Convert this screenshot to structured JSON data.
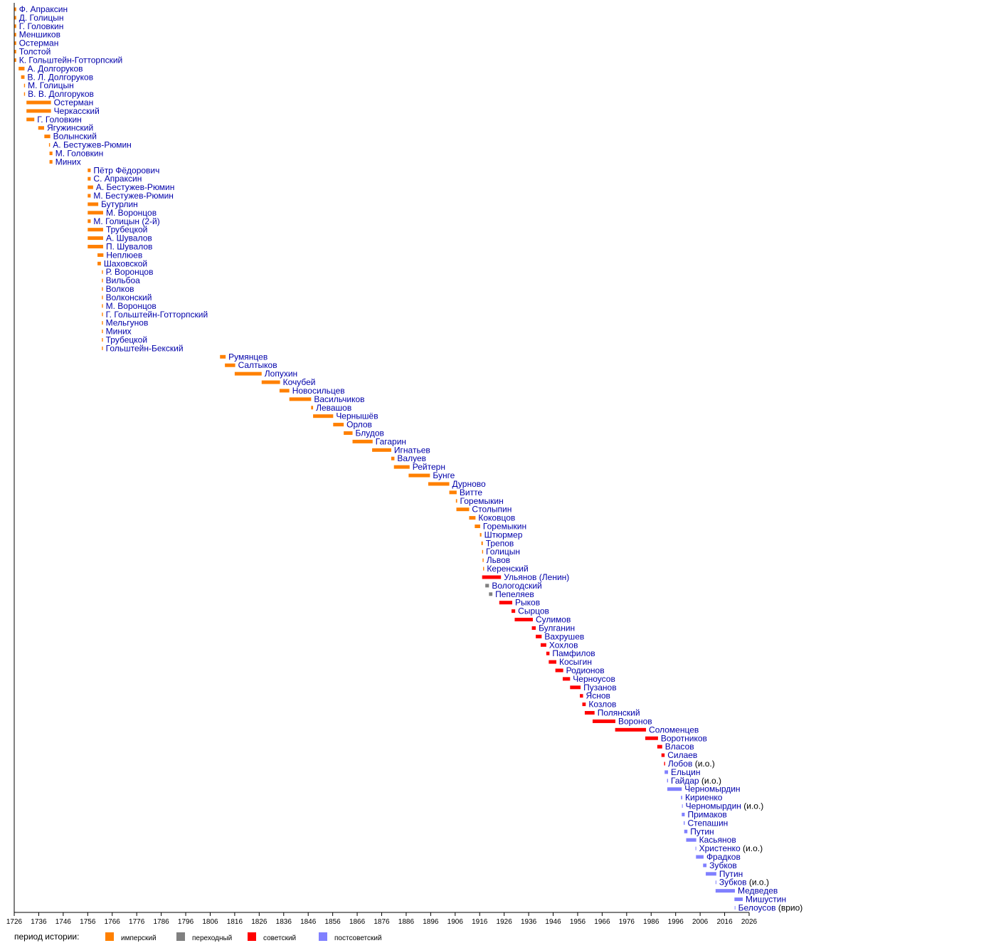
{
  "chart_data": {
    "type": "bar",
    "orientation": "horizontal-timeline",
    "x_axis": {
      "min": 1726,
      "max": 2026,
      "ticks": [
        1726,
        1736,
        1746,
        1756,
        1766,
        1776,
        1786,
        1796,
        1806,
        1816,
        1826,
        1836,
        1846,
        1856,
        1866,
        1876,
        1886,
        1896,
        1906,
        1916,
        1926,
        1936,
        1946,
        1956,
        1966,
        1976,
        1986,
        1996,
        2006,
        2016,
        2026
      ]
    },
    "colors": {
      "imperial": "#ff8000",
      "transitional": "#808080",
      "soviet": "#ff0000",
      "postsoviet": "#8080ff",
      "label": "#0000aa",
      "axis": "#000000"
    },
    "legend": {
      "title": "период истории:",
      "placement": "bottom-left",
      "items": [
        {
          "key": "imperial",
          "label": "имперский"
        },
        {
          "key": "transitional",
          "label": "переходный"
        },
        {
          "key": "soviet",
          "label": "советский"
        },
        {
          "key": "postsoviet",
          "label": "постсоветский"
        }
      ]
    },
    "rows": [
      {
        "name": "Ф. Апраксин",
        "start": 1726.1,
        "end": 1726.8,
        "period": "imperial"
      },
      {
        "name": "Д. Голицын",
        "start": 1726.1,
        "end": 1726.8,
        "period": "imperial"
      },
      {
        "name": "Г. Головкин",
        "start": 1726.1,
        "end": 1726.8,
        "period": "imperial"
      },
      {
        "name": "Меншиков",
        "start": 1726.1,
        "end": 1726.8,
        "period": "imperial"
      },
      {
        "name": "Остерман",
        "start": 1726.1,
        "end": 1726.8,
        "period": "imperial"
      },
      {
        "name": "Толстой",
        "start": 1726.1,
        "end": 1726.8,
        "period": "imperial"
      },
      {
        "name": "К. Гольштейн-Готторпский",
        "start": 1726.1,
        "end": 1726.8,
        "period": "imperial"
      },
      {
        "name": "А. Долгоруков",
        "start": 1727.8,
        "end": 1730.2,
        "period": "imperial"
      },
      {
        "name": "В. Л. Долгоруков",
        "start": 1728.8,
        "end": 1730.2,
        "period": "imperial"
      },
      {
        "name": "М. Голицын",
        "start": 1730.0,
        "end": 1730.4,
        "period": "imperial"
      },
      {
        "name": "В. В. Долгоруков",
        "start": 1730.0,
        "end": 1730.4,
        "period": "imperial"
      },
      {
        "name": "Остерман",
        "start": 1731.0,
        "end": 1741.0,
        "period": "imperial"
      },
      {
        "name": "Черкасский",
        "start": 1731.0,
        "end": 1741.0,
        "period": "imperial"
      },
      {
        "name": "Г. Головкин",
        "start": 1731.0,
        "end": 1734.2,
        "period": "imperial"
      },
      {
        "name": "Ягужинский",
        "start": 1735.8,
        "end": 1738.2,
        "period": "imperial"
      },
      {
        "name": "Волынский",
        "start": 1738.3,
        "end": 1740.7,
        "period": "imperial"
      },
      {
        "name": "А. Бестужев-Рюмин",
        "start": 1740.2,
        "end": 1740.6,
        "period": "imperial"
      },
      {
        "name": "М. Головкин",
        "start": 1740.4,
        "end": 1741.6,
        "period": "imperial"
      },
      {
        "name": "Миних",
        "start": 1740.4,
        "end": 1741.6,
        "period": "imperial"
      },
      {
        "name": "Пётр Фёдорович",
        "start": 1756.0,
        "end": 1757.2,
        "period": "imperial"
      },
      {
        "name": "С. Апраксин",
        "start": 1756.0,
        "end": 1757.2,
        "period": "imperial"
      },
      {
        "name": "А. Бестужев-Рюмин",
        "start": 1756.0,
        "end": 1758.2,
        "period": "imperial"
      },
      {
        "name": "М. Бестужев-Рюмин",
        "start": 1756.0,
        "end": 1757.2,
        "period": "imperial"
      },
      {
        "name": "Бутурлин",
        "start": 1756.0,
        "end": 1760.3,
        "period": "imperial"
      },
      {
        "name": "М. Воронцов",
        "start": 1756.0,
        "end": 1762.3,
        "period": "imperial"
      },
      {
        "name": "М. Голицын (2-й)",
        "start": 1756.0,
        "end": 1757.2,
        "period": "imperial"
      },
      {
        "name": "Трубецкой",
        "start": 1756.0,
        "end": 1762.3,
        "period": "imperial"
      },
      {
        "name": "А. Шувалов",
        "start": 1756.0,
        "end": 1762.3,
        "period": "imperial"
      },
      {
        "name": "П. Шувалов",
        "start": 1756.0,
        "end": 1762.3,
        "period": "imperial"
      },
      {
        "name": "Неплюев",
        "start": 1760.0,
        "end": 1762.4,
        "period": "imperial"
      },
      {
        "name": "Шаховской",
        "start": 1760.0,
        "end": 1761.4,
        "period": "imperial"
      },
      {
        "name": "Р. Воронцов",
        "start": 1761.8,
        "end": 1762.2,
        "period": "imperial"
      },
      {
        "name": "Вильбоа",
        "start": 1761.8,
        "end": 1762.2,
        "period": "imperial"
      },
      {
        "name": "Волков",
        "start": 1761.8,
        "end": 1762.2,
        "period": "imperial"
      },
      {
        "name": "Волконский",
        "start": 1761.8,
        "end": 1762.2,
        "period": "imperial"
      },
      {
        "name": "М. Воронцов",
        "start": 1761.8,
        "end": 1762.2,
        "period": "imperial"
      },
      {
        "name": "Г. Гольштейн-Готторпский",
        "start": 1761.8,
        "end": 1762.2,
        "period": "imperial"
      },
      {
        "name": "Мельгунов",
        "start": 1761.8,
        "end": 1762.2,
        "period": "imperial"
      },
      {
        "name": "Миних",
        "start": 1761.8,
        "end": 1762.2,
        "period": "imperial"
      },
      {
        "name": "Трубецкой",
        "start": 1761.8,
        "end": 1762.2,
        "period": "imperial"
      },
      {
        "name": "Гольштейн-Бекский",
        "start": 1761.8,
        "end": 1762.2,
        "period": "imperial"
      },
      {
        "name": "Румянцев",
        "start": 1810.0,
        "end": 1812.3,
        "period": "imperial"
      },
      {
        "name": "Салтыков",
        "start": 1812.0,
        "end": 1816.2,
        "period": "imperial"
      },
      {
        "name": "Лопухин",
        "start": 1816.0,
        "end": 1827.0,
        "period": "imperial"
      },
      {
        "name": "Кочубей",
        "start": 1827.0,
        "end": 1834.5,
        "period": "imperial"
      },
      {
        "name": "Новосильцев",
        "start": 1834.3,
        "end": 1838.3,
        "period": "imperial"
      },
      {
        "name": "Васильчиков",
        "start": 1838.3,
        "end": 1847.2,
        "period": "imperial"
      },
      {
        "name": "Левашов",
        "start": 1847.2,
        "end": 1848.0,
        "period": "imperial"
      },
      {
        "name": "Чернышёв",
        "start": 1848.0,
        "end": 1856.2,
        "period": "imperial"
      },
      {
        "name": "Орлов",
        "start": 1856.2,
        "end": 1860.5,
        "period": "imperial"
      },
      {
        "name": "Блудов",
        "start": 1860.5,
        "end": 1864.1,
        "period": "imperial"
      },
      {
        "name": "Гагарин",
        "start": 1864.1,
        "end": 1872.3,
        "period": "imperial"
      },
      {
        "name": "Игнатьев",
        "start": 1872.1,
        "end": 1879.9,
        "period": "imperial"
      },
      {
        "name": "Валуев",
        "start": 1879.9,
        "end": 1881.2,
        "period": "imperial"
      },
      {
        "name": "Рейтерн",
        "start": 1881.0,
        "end": 1887.4,
        "period": "imperial"
      },
      {
        "name": "Бунге",
        "start": 1887.0,
        "end": 1895.7,
        "period": "imperial"
      },
      {
        "name": "Дурново",
        "start": 1895.0,
        "end": 1903.6,
        "period": "imperial"
      },
      {
        "name": "Витте",
        "start": 1903.6,
        "end": 1906.6,
        "period": "imperial"
      },
      {
        "name": "Горемыкин",
        "start": 1906.3,
        "end": 1906.8,
        "period": "imperial"
      },
      {
        "name": "Столыпин",
        "start": 1906.5,
        "end": 1911.7,
        "period": "imperial"
      },
      {
        "name": "Коковцов",
        "start": 1911.7,
        "end": 1914.3,
        "period": "imperial"
      },
      {
        "name": "Горемыкин",
        "start": 1914.0,
        "end": 1916.2,
        "period": "imperial"
      },
      {
        "name": "Штюрмер",
        "start": 1916.1,
        "end": 1916.7,
        "period": "imperial"
      },
      {
        "name": "Трепов",
        "start": 1916.7,
        "end": 1917.3,
        "period": "imperial"
      },
      {
        "name": "Голицын",
        "start": 1917.0,
        "end": 1917.4,
        "period": "imperial"
      },
      {
        "name": "Львов",
        "start": 1917.2,
        "end": 1917.6,
        "period": "imperial"
      },
      {
        "name": "Керенский",
        "start": 1917.4,
        "end": 1917.8,
        "period": "imperial"
      },
      {
        "name": "Ульянов (Ленин)",
        "start": 1917.0,
        "end": 1924.7,
        "period": "soviet"
      },
      {
        "name": "Вологодский",
        "start": 1918.3,
        "end": 1919.8,
        "period": "transitional"
      },
      {
        "name": "Пепеляев",
        "start": 1919.8,
        "end": 1921.2,
        "period": "transitional"
      },
      {
        "name": "Рыков",
        "start": 1924.0,
        "end": 1929.3,
        "period": "soviet"
      },
      {
        "name": "Сырцов",
        "start": 1929.0,
        "end": 1930.5,
        "period": "soviet"
      },
      {
        "name": "Сулимов",
        "start": 1930.3,
        "end": 1937.7,
        "period": "soviet"
      },
      {
        "name": "Булганин",
        "start": 1937.3,
        "end": 1938.9,
        "period": "soviet"
      },
      {
        "name": "Вахрушев",
        "start": 1938.9,
        "end": 1941.3,
        "period": "soviet"
      },
      {
        "name": "Хохлов",
        "start": 1940.9,
        "end": 1943.2,
        "period": "soviet"
      },
      {
        "name": "Памфилов",
        "start": 1943.2,
        "end": 1944.5,
        "period": "soviet"
      },
      {
        "name": "Косыгин",
        "start": 1944.2,
        "end": 1947.3,
        "period": "soviet"
      },
      {
        "name": "Родионов",
        "start": 1946.9,
        "end": 1950.1,
        "period": "soviet"
      },
      {
        "name": "Черноусов",
        "start": 1949.9,
        "end": 1952.9,
        "period": "soviet"
      },
      {
        "name": "Пузанов",
        "start": 1952.9,
        "end": 1957.2,
        "period": "soviet"
      },
      {
        "name": "Яснов",
        "start": 1956.9,
        "end": 1958.2,
        "period": "soviet"
      },
      {
        "name": "Козлов",
        "start": 1957.9,
        "end": 1959.3,
        "period": "soviet"
      },
      {
        "name": "Полянский",
        "start": 1958.9,
        "end": 1962.9,
        "period": "soviet"
      },
      {
        "name": "Воронов",
        "start": 1962.1,
        "end": 1971.4,
        "period": "soviet"
      },
      {
        "name": "Соломенцев",
        "start": 1971.3,
        "end": 1983.9,
        "period": "soviet"
      },
      {
        "name": "Воротников",
        "start": 1983.6,
        "end": 1988.8,
        "period": "soviet"
      },
      {
        "name": "Власов",
        "start": 1988.5,
        "end": 1990.5,
        "period": "soviet"
      },
      {
        "name": "Силаев",
        "start": 1990.2,
        "end": 1991.5,
        "period": "soviet"
      },
      {
        "name": "Лобов",
        "suffix": "(и.о.)",
        "start": 1991.3,
        "end": 1991.7,
        "period": "soviet"
      },
      {
        "name": "Ельцин",
        "start": 1991.5,
        "end": 1992.9,
        "period": "postsoviet"
      },
      {
        "name": "Гайдар",
        "suffix": "(и.о.)",
        "start": 1992.5,
        "end": 1992.9,
        "period": "postsoviet"
      },
      {
        "name": "Черномырдин",
        "start": 1992.6,
        "end": 1998.5,
        "period": "postsoviet"
      },
      {
        "name": "Кириенко",
        "start": 1998.2,
        "end": 1998.7,
        "period": "postsoviet"
      },
      {
        "name": "Черномырдин",
        "suffix": "(и.о.)",
        "start": 1998.6,
        "end": 1998.8,
        "period": "postsoviet"
      },
      {
        "name": "Примаков",
        "start": 1998.5,
        "end": 1999.7,
        "period": "postsoviet"
      },
      {
        "name": "Степашин",
        "start": 1999.3,
        "end": 1999.7,
        "period": "postsoviet"
      },
      {
        "name": "Путин",
        "start": 1999.5,
        "end": 2000.8,
        "period": "postsoviet"
      },
      {
        "name": "Касьянов",
        "start": 2000.3,
        "end": 2004.4,
        "period": "postsoviet"
      },
      {
        "name": "Христенко",
        "suffix": "(и.о.)",
        "start": 2004.1,
        "end": 2004.4,
        "period": "postsoviet"
      },
      {
        "name": "Фрадков",
        "start": 2004.3,
        "end": 2007.4,
        "period": "postsoviet"
      },
      {
        "name": "Зубков",
        "start": 2007.2,
        "end": 2008.6,
        "period": "postsoviet"
      },
      {
        "name": "Путин",
        "start": 2008.3,
        "end": 2012.6,
        "period": "postsoviet"
      },
      {
        "name": "Зубков",
        "suffix": "(и.о.)",
        "start": 2012.3,
        "end": 2012.6,
        "period": "postsoviet"
      },
      {
        "name": "Медведев",
        "start": 2012.3,
        "end": 2020.2,
        "period": "postsoviet"
      },
      {
        "name": "Мишустин",
        "start": 2020.0,
        "end": 2023.4,
        "period": "postsoviet"
      },
      {
        "name": "Белоусов",
        "suffix": "(врио)",
        "start": 2020.1,
        "end": 2020.3,
        "period": "postsoviet"
      }
    ]
  }
}
